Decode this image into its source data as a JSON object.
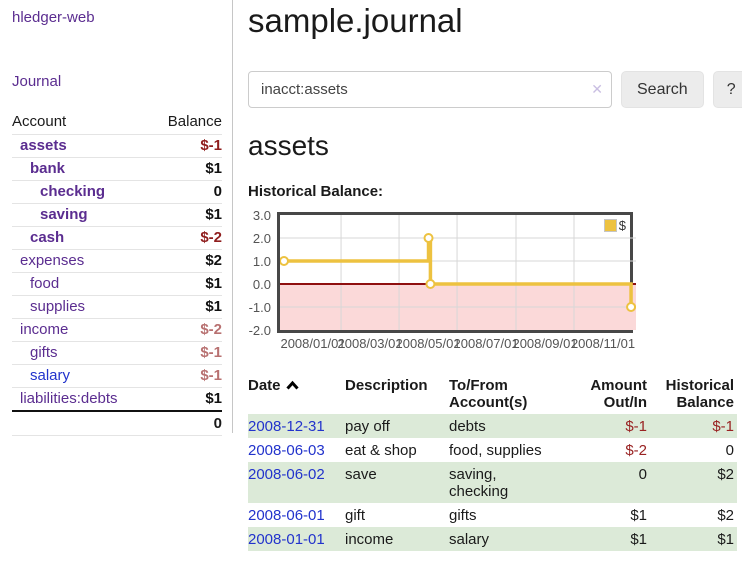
{
  "colors": {
    "accent_purple": "#5b2d90",
    "link_blue": "#2233cc",
    "negative_strong": "#8f1d1d",
    "negative_soft": "#b87171",
    "stripe_green": "#dcead8",
    "chart_line_gold": "#edc240",
    "chart_negative_fill": "#fbd9d9",
    "chart_zero_line": "#8f0f0f"
  },
  "sidebar": {
    "brand": "hledger-web",
    "nav_journal": "Journal",
    "accounts": {
      "header_account": "Account",
      "header_balance": "Balance",
      "rows": [
        {
          "name": "assets",
          "balance": "$-1"
        },
        {
          "name": "bank",
          "balance": "$1"
        },
        {
          "name": "checking",
          "balance": "0"
        },
        {
          "name": "saving",
          "balance": "$1"
        },
        {
          "name": "cash",
          "balance": "$-2"
        },
        {
          "name": "expenses",
          "balance": "$2"
        },
        {
          "name": "food",
          "balance": "$1"
        },
        {
          "name": "supplies",
          "balance": "$1"
        },
        {
          "name": "income",
          "balance": "$-2"
        },
        {
          "name": "gifts",
          "balance": "$-1"
        },
        {
          "name": "salary",
          "balance": "$-1"
        },
        {
          "name": "liabilities:debts",
          "balance": "$1"
        }
      ],
      "total": "0"
    }
  },
  "main": {
    "title": "sample.journal",
    "search": {
      "value": "inacct:assets",
      "clear_label": "✕",
      "search_button": "Search",
      "help_button": "?"
    },
    "heading": "assets",
    "chart_title": "Historical Balance:"
  },
  "chart_data": {
    "type": "line",
    "step": true,
    "title": "Historical Balance",
    "series": [
      {
        "name": "$",
        "color": "#edc240",
        "points": [
          [
            "2008-01-01",
            1.0
          ],
          [
            "2008-06-01",
            2.0
          ],
          [
            "2008-06-03",
            0.0
          ],
          [
            "2008-12-31",
            -1.0
          ]
        ]
      }
    ],
    "x_domain": [
      "2008-01-01",
      "2009-01-01"
    ],
    "ylim": [
      -2.0,
      3.0
    ],
    "yticks": [
      3.0,
      2.0,
      1.0,
      0.0,
      -1.0,
      -2.0
    ],
    "ytick_labels": [
      "3.0",
      "2.0",
      "1.0",
      "0.0",
      "-1.0",
      "-2.0"
    ],
    "xticks": [
      "2008/01/01",
      "2008/03/01",
      "2008/05/01",
      "2008/07/01",
      "2008/09/01",
      "2008/11/01"
    ],
    "legend": {
      "label": "$",
      "position": "top-right"
    },
    "grid": true,
    "negative_region": true
  },
  "register": {
    "headers": {
      "date": "Date",
      "description": "Description",
      "accounts": "To/From Account(s)",
      "amount": "Amount Out/In",
      "balance": "Historical Balance"
    },
    "rows": [
      {
        "date": "2008-12-31",
        "description": "pay off",
        "accounts": "debts",
        "amount": "$-1",
        "balance": "$-1"
      },
      {
        "date": "2008-06-03",
        "description": "eat & shop",
        "accounts": "food, supplies",
        "amount": "$-2",
        "balance": "0"
      },
      {
        "date": "2008-06-02",
        "description": "save",
        "accounts": "saving, checking",
        "amount": "0",
        "balance": "$2"
      },
      {
        "date": "2008-06-01",
        "description": "gift",
        "accounts": "gifts",
        "amount": "$1",
        "balance": "$2"
      },
      {
        "date": "2008-01-01",
        "description": "income",
        "accounts": "salary",
        "amount": "$1",
        "balance": "$1"
      }
    ]
  }
}
